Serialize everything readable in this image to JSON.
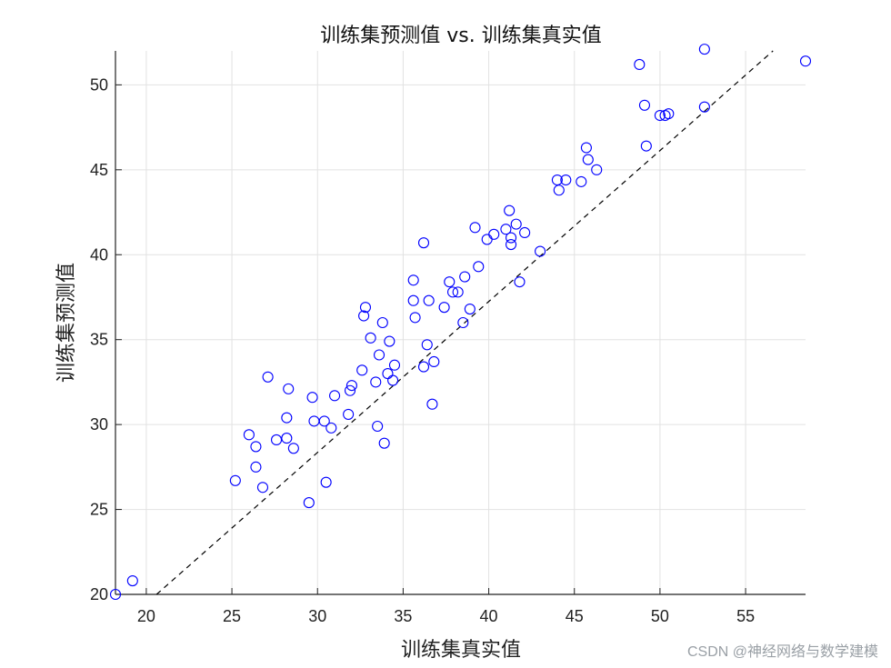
{
  "chart_data": {
    "type": "scatter",
    "title": "训练集预测值 vs. 训练集真实值",
    "xlabel": "训练集真实值",
    "ylabel": "训练集预测值",
    "xlim": [
      18.2,
      58.5
    ],
    "ylim": [
      20,
      52
    ],
    "xticks": [
      20,
      25,
      30,
      35,
      40,
      45,
      50,
      55
    ],
    "yticks": [
      20,
      25,
      30,
      35,
      40,
      45,
      50
    ],
    "grid": true,
    "reference_line": {
      "style": "dashed",
      "color": "#000000",
      "points": [
        [
          20.6,
          20
        ],
        [
          56.6,
          52
        ]
      ]
    },
    "marker": {
      "shape": "open-circle",
      "color": "#0000ff"
    },
    "series": [
      {
        "name": "",
        "x": [
          18.2,
          19.2,
          25.2,
          26.8,
          26.4,
          26.4,
          26.0,
          27.6,
          28.2,
          28.2,
          28.6,
          28.3,
          27.1,
          29.5,
          29.8,
          29.7,
          30.4,
          30.5,
          30.8,
          31.0,
          31.8,
          31.9,
          32.0,
          32.6,
          32.7,
          32.8,
          33.1,
          33.4,
          33.5,
          33.6,
          33.8,
          33.9,
          34.1,
          34.2,
          34.4,
          34.5,
          35.6,
          35.6,
          35.7,
          36.2,
          36.2,
          36.4,
          36.5,
          36.7,
          36.8,
          37.4,
          37.7,
          37.9,
          38.2,
          38.5,
          38.6,
          38.9,
          39.2,
          39.4,
          39.9,
          40.3,
          41.0,
          41.2,
          41.3,
          41.3,
          41.6,
          41.8,
          42.1,
          43.0,
          44.0,
          44.1,
          44.5,
          45.4,
          45.7,
          45.8,
          46.3,
          48.8,
          49.1,
          49.2,
          50.0,
          50.3,
          50.5,
          52.6,
          52.6,
          58.5
        ],
        "y": [
          20.0,
          20.8,
          26.7,
          26.3,
          27.5,
          28.7,
          29.4,
          29.1,
          29.2,
          30.4,
          28.6,
          32.1,
          32.8,
          25.4,
          30.2,
          31.6,
          30.2,
          26.6,
          29.8,
          31.7,
          30.6,
          32.0,
          32.3,
          33.2,
          36.4,
          36.9,
          35.1,
          32.5,
          29.9,
          34.1,
          36.0,
          28.9,
          33.0,
          34.9,
          32.6,
          33.5,
          37.3,
          38.5,
          36.3,
          33.4,
          40.7,
          34.7,
          37.3,
          31.2,
          33.7,
          36.9,
          38.4,
          37.8,
          37.8,
          36.0,
          38.7,
          36.8,
          41.6,
          39.3,
          40.9,
          41.2,
          41.5,
          42.6,
          40.6,
          41.0,
          41.8,
          38.4,
          41.3,
          40.2,
          44.4,
          43.8,
          44.4,
          44.3,
          46.3,
          45.6,
          45.0,
          51.2,
          48.8,
          46.4,
          48.2,
          48.2,
          48.3,
          48.7,
          52.1,
          51.4
        ]
      }
    ]
  },
  "watermark": "CSDN @神经网络与数学建模"
}
